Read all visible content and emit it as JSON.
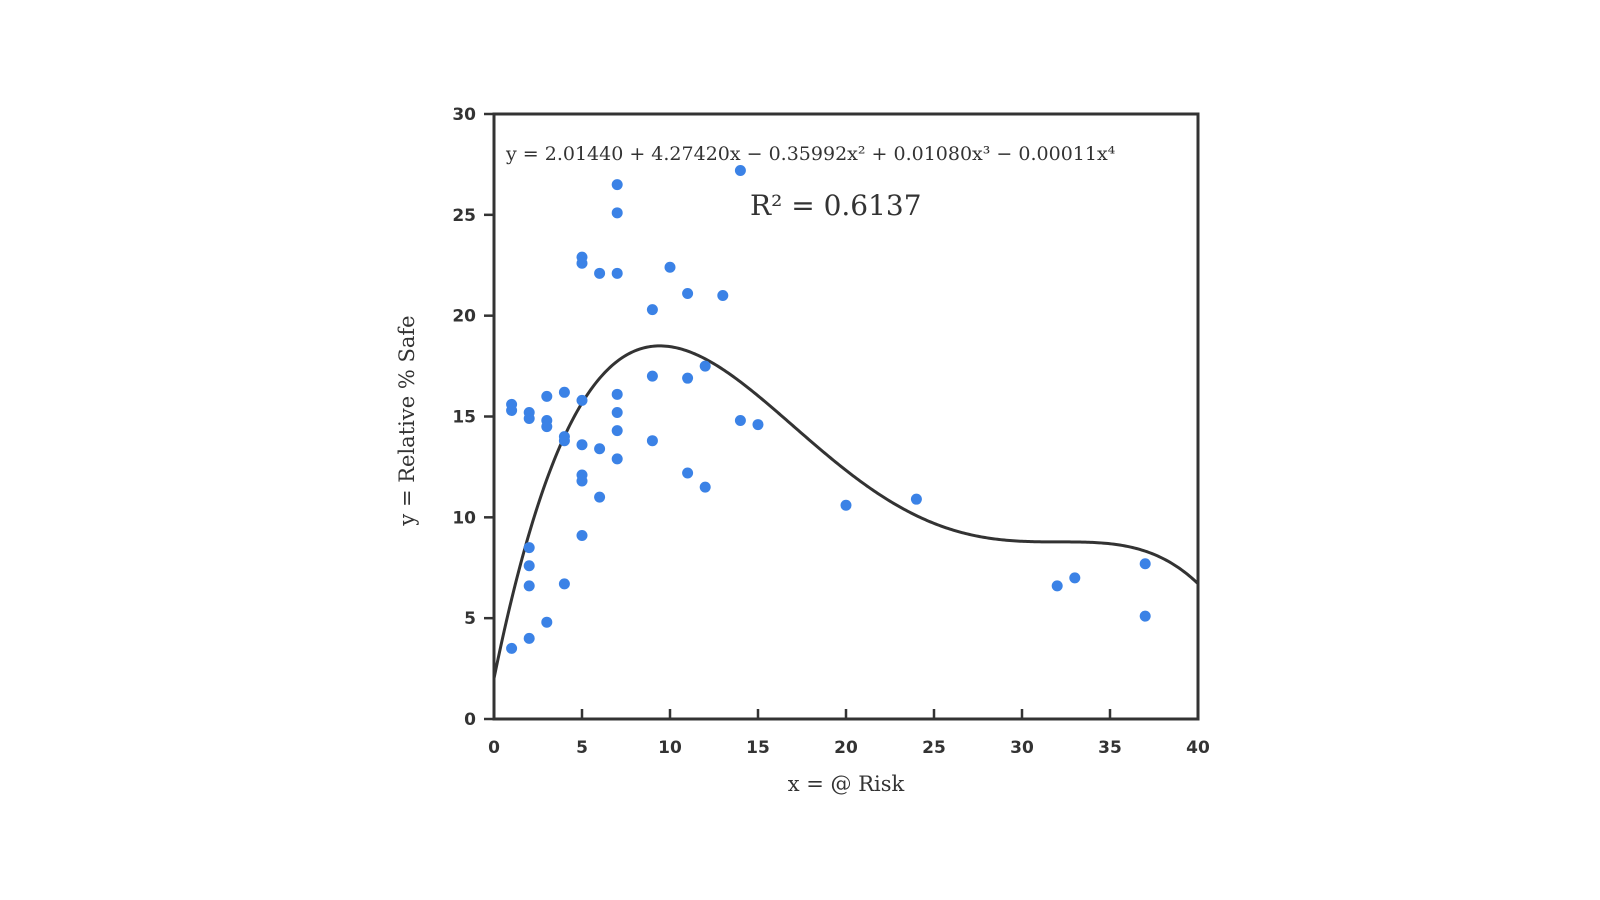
{
  "chart_data": {
    "type": "scatter",
    "xlabel": "x = @ Risk",
    "ylabel": "y = Relative % Safe",
    "xlim": [
      0,
      40
    ],
    "ylim": [
      0,
      30
    ],
    "xticks": [
      "0",
      "5",
      "10",
      "15",
      "20",
      "25",
      "30",
      "35",
      "40"
    ],
    "yticks": [
      "0",
      "5",
      "10",
      "15",
      "20",
      "25",
      "30"
    ],
    "grid": false,
    "legend": "none",
    "point_color": "#3b82e6",
    "curve_color": "#333333",
    "equation": "y = 2.01440 + 4.27420x − 0.35992x² + 0.01080x³ − 0.00011x⁴",
    "r_squared_label": "R² = 0.6137",
    "fit_coefficients": [
      2.0144,
      4.2742,
      -0.35992,
      0.0108,
      -0.00011
    ],
    "points": [
      [
        1,
        15.6
      ],
      [
        1,
        15.3
      ],
      [
        1,
        3.5
      ],
      [
        2,
        15.2
      ],
      [
        2,
        14.9
      ],
      [
        2,
        8.5
      ],
      [
        2,
        7.6
      ],
      [
        2,
        6.6
      ],
      [
        2,
        4.0
      ],
      [
        3,
        16.0
      ],
      [
        3,
        14.8
      ],
      [
        3,
        14.5
      ],
      [
        3,
        4.8
      ],
      [
        4,
        16.2
      ],
      [
        4,
        14.0
      ],
      [
        4,
        13.8
      ],
      [
        4,
        6.7
      ],
      [
        5,
        22.9
      ],
      [
        5,
        22.6
      ],
      [
        5,
        15.8
      ],
      [
        5,
        13.6
      ],
      [
        5,
        12.1
      ],
      [
        5,
        11.8
      ],
      [
        5,
        9.1
      ],
      [
        6,
        22.1
      ],
      [
        6,
        13.4
      ],
      [
        6,
        11.0
      ],
      [
        7,
        26.5
      ],
      [
        7,
        25.1
      ],
      [
        7,
        22.1
      ],
      [
        7,
        16.1
      ],
      [
        7,
        15.2
      ],
      [
        7,
        14.3
      ],
      [
        7,
        12.9
      ],
      [
        9,
        20.3
      ],
      [
        9,
        17.0
      ],
      [
        9,
        13.8
      ],
      [
        10,
        22.4
      ],
      [
        11,
        21.1
      ],
      [
        11,
        16.9
      ],
      [
        11,
        12.2
      ],
      [
        12,
        17.5
      ],
      [
        12,
        11.5
      ],
      [
        13,
        21.0
      ],
      [
        14,
        27.2
      ],
      [
        14,
        14.8
      ],
      [
        15,
        14.6
      ],
      [
        20,
        10.6
      ],
      [
        24,
        10.9
      ],
      [
        32,
        6.6
      ],
      [
        33,
        7.0
      ],
      [
        37,
        7.7
      ],
      [
        37,
        5.1
      ]
    ]
  }
}
